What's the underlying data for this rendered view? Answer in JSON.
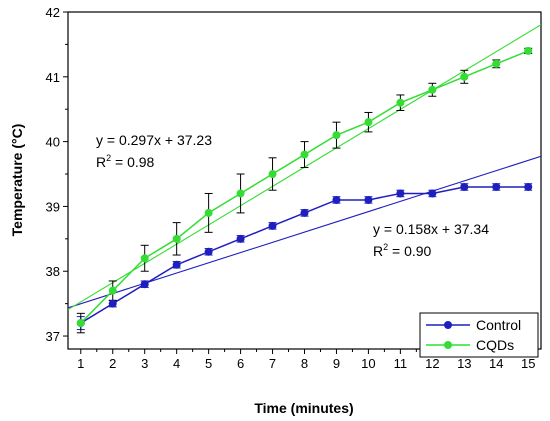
{
  "chart_data": {
    "type": "line",
    "xlabel": "Time (minutes)",
    "ylabel": "Temperature (°C)",
    "xlim": [
      0.6,
      15.4
    ],
    "ylim": [
      36.8,
      42
    ],
    "xticks": [
      "1",
      "2",
      "3",
      "4",
      "5",
      "6",
      "7",
      "8",
      "9",
      "10",
      "11",
      "12",
      "13",
      "14",
      "15"
    ],
    "yticks": [
      "37",
      "38",
      "39",
      "40",
      "41",
      "42"
    ],
    "x": [
      1,
      2,
      3,
      4,
      5,
      6,
      7,
      8,
      9,
      10,
      11,
      12,
      13,
      14,
      15
    ],
    "series": [
      {
        "name": "Control",
        "color": "#1f1fbf",
        "values": [
          37.2,
          37.5,
          37.8,
          38.1,
          38.3,
          38.5,
          38.7,
          38.9,
          39.1,
          39.1,
          39.2,
          39.2,
          39.3,
          39.3,
          39.3
        ],
        "errors": [
          0.1,
          0.05,
          0.05,
          0.05,
          0.05,
          0.05,
          0.05,
          0.05,
          0.05,
          0.05,
          0.05,
          0.05,
          0.05,
          0.05,
          0.05
        ],
        "fit": {
          "slope": 0.158,
          "intercept": 37.34
        },
        "annotation_eq": "y = 0.158x + 37.34",
        "annotation_r2_prefix": "R",
        "annotation_r2_sup": "2",
        "annotation_r2_value": " = 0.90"
      },
      {
        "name": "CQDs",
        "color": "#33dd33",
        "values": [
          37.2,
          37.7,
          38.2,
          38.5,
          38.9,
          39.2,
          39.5,
          39.8,
          40.1,
          40.3,
          40.6,
          40.8,
          41.0,
          41.2,
          41.4
        ],
        "errors": [
          0.15,
          0.15,
          0.2,
          0.25,
          0.3,
          0.3,
          0.25,
          0.2,
          0.2,
          0.15,
          0.12,
          0.1,
          0.1,
          0.06,
          0.04
        ],
        "fit": {
          "slope": 0.297,
          "intercept": 37.23
        },
        "annotation_eq": "y = 0.297x + 37.23",
        "annotation_r2_prefix": "R",
        "annotation_r2_sup": "2",
        "annotation_r2_value": " = 0.98"
      }
    ],
    "grid": false,
    "legend_position": "bottom-right"
  }
}
